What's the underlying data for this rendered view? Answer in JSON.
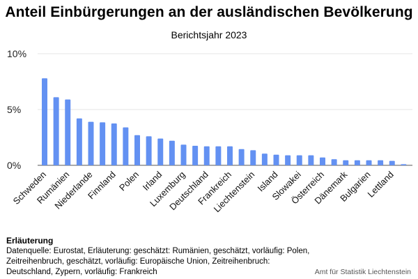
{
  "header": {
    "title": "Anteil Einbürgerungen an der ausländischen Bevölkerung",
    "subtitle": "Berichtsjahr 2023"
  },
  "chart_data": {
    "type": "bar",
    "bar_color": "#6391f2",
    "grid": true,
    "ylim": [
      0,
      10
    ],
    "yticks": [
      0,
      5,
      10
    ],
    "ytick_labels": [
      "0%",
      "5%",
      "10%"
    ],
    "categories": [
      "Schweden",
      "",
      "Rumänien",
      "",
      "Niederlande",
      "",
      "Finnland",
      "",
      "Polen",
      "",
      "Irland",
      "",
      "Luxemburg",
      "",
      "Deutschland",
      "",
      "Frankreich",
      "",
      "Liechtenstein",
      "",
      "Island",
      "",
      "Slowakei",
      "",
      "Österreich",
      "",
      "Dänemark",
      "",
      "Bulgarien",
      "",
      "Lettland",
      ""
    ],
    "values": [
      7.8,
      6.1,
      5.9,
      4.2,
      3.9,
      3.85,
      3.75,
      3.4,
      2.7,
      2.6,
      2.4,
      2.2,
      1.85,
      1.75,
      1.7,
      1.7,
      1.7,
      1.45,
      1.35,
      1.05,
      0.95,
      0.9,
      0.9,
      0.9,
      0.7,
      0.55,
      0.45,
      0.45,
      0.45,
      0.45,
      0.4,
      0.1
    ]
  },
  "footer": {
    "note_heading": "Erläuterung",
    "note_text": "Datenquelle: Eurostat, Erläuterung: geschätzt: Rumänien, geschätzt, vorläufig: Polen, Zeitreihenbruch, geschätzt, vorläufig: Europäische Union, Zeitreihenbruch: Deutschland, Zypern, vorläufig: Frankreich",
    "credit": "Amt für Statistik Liechtenstein"
  }
}
